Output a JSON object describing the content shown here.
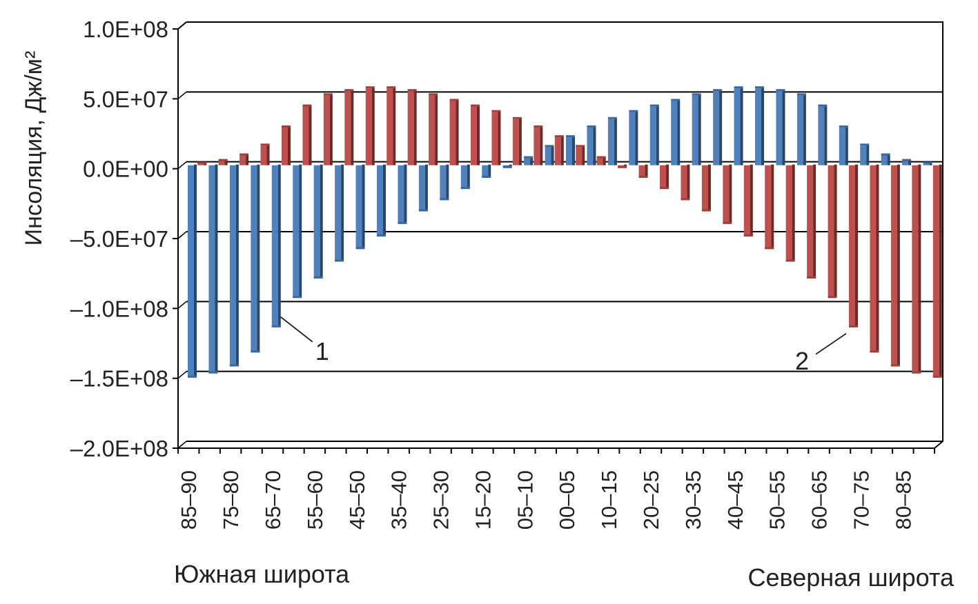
{
  "chart_data": {
    "type": "bar",
    "title": "",
    "ylabel": "Инсоляция, Дж/м²",
    "xlabel_left": "Южная широта",
    "xlabel_right": "Северная широта",
    "ylim": [
      -200000000,
      100000000
    ],
    "y_ticks": [
      "1.0E+08",
      "5.0E+07",
      "0.0E+00",
      "–5.0E+07",
      "–1.0E+08",
      "–1.5E+08",
      "–2.0E+08"
    ],
    "y_tick_values": [
      100000000,
      50000000,
      0,
      -50000000,
      -100000000,
      -150000000,
      -200000000
    ],
    "x_tick_labels": [
      "85–90",
      "75–80",
      "65–70",
      "55–60",
      "45–50",
      "35–40",
      "25–30",
      "15–20",
      "05–10",
      "00–05",
      "10–15",
      "20–25",
      "30–35",
      "40–45",
      "50–55",
      "60–65",
      "70–75",
      "80–85"
    ],
    "bands": [
      "S85–90",
      "S80–85",
      "S75–80",
      "S70–75",
      "S65–70",
      "S60–65",
      "S55–60",
      "S50–55",
      "S45–50",
      "S40–45",
      "S35–40",
      "S30–35",
      "S25–30",
      "S20–25",
      "S15–20",
      "S10–15",
      "S05–10",
      "S00–05",
      "N00–05",
      "N05–10",
      "N10–15",
      "N15–20",
      "N20–25",
      "N25–30",
      "N30–35",
      "N35–40",
      "N40–45",
      "N45–50",
      "N50–55",
      "N55–60",
      "N60–65",
      "N65–70",
      "N70–75",
      "N75–80",
      "N80–85",
      "N85–90"
    ],
    "series": [
      {
        "name": "1",
        "color": "#4f81bd",
        "values": [
          -152000000,
          -149000000,
          -144000000,
          -134000000,
          -116000000,
          -95000000,
          -81000000,
          -69000000,
          -60000000,
          -51000000,
          -42000000,
          -33000000,
          -25000000,
          -17000000,
          -9000000,
          -2000000,
          5000000,
          13000000,
          20000000,
          27000000,
          33000000,
          38000000,
          42000000,
          46000000,
          50000000,
          53000000,
          55000000,
          55000000,
          53000000,
          50000000,
          42000000,
          27000000,
          14000000,
          7000000,
          3000000,
          1000000
        ]
      },
      {
        "name": "2",
        "color": "#c0504d",
        "values": [
          1000000,
          3000000,
          7000000,
          14000000,
          27000000,
          42000000,
          50000000,
          53000000,
          55000000,
          55000000,
          53000000,
          50000000,
          46000000,
          42000000,
          38000000,
          33000000,
          27000000,
          20000000,
          13000000,
          5000000,
          -2000000,
          -9000000,
          -17000000,
          -25000000,
          -33000000,
          -42000000,
          -51000000,
          -60000000,
          -69000000,
          -81000000,
          -95000000,
          -116000000,
          -134000000,
          -144000000,
          -149000000,
          -152000000
        ]
      }
    ],
    "grid": true,
    "legend": "callouts"
  }
}
